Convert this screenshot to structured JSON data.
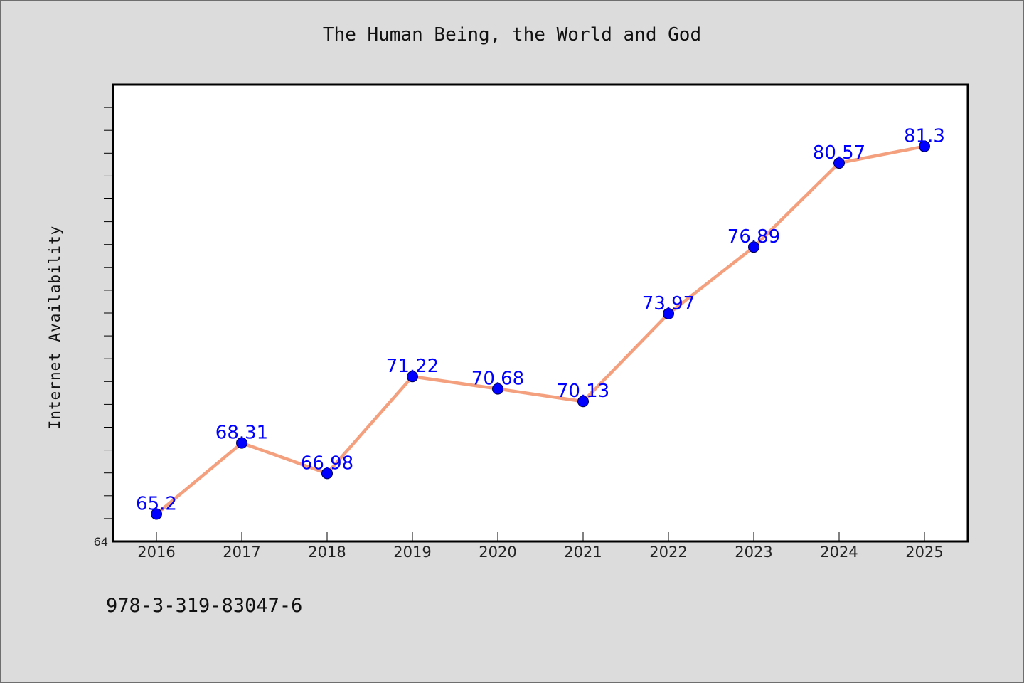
{
  "title": "The Human Being, the World and God",
  "footer_text": "978-3-319-83047-6",
  "chart_data": {
    "type": "line",
    "title": "The Human Being, the World and God",
    "xlabel": "",
    "ylabel": "Internet Availability",
    "categories": [
      "2016",
      "2017",
      "2018",
      "2019",
      "2020",
      "2021",
      "2022",
      "2023",
      "2024",
      "2025"
    ],
    "series": [
      {
        "values": [
          65.2,
          68.31,
          66.98,
          71.22,
          70.68,
          70.13,
          73.97,
          76.89,
          80.57,
          81.3
        ],
        "data_labels": [
          "65.2",
          "68.31",
          "66.98",
          "71.22",
          "70.68",
          "70.13",
          "73.97",
          "76.89",
          "80.57",
          "81.3"
        ],
        "line_color": "#f4a07f",
        "marker_color": "#0000ff"
      }
    ],
    "ylim": [
      64,
      84
    ],
    "y_tick_labels": [
      "64"
    ],
    "grid": false,
    "legend": "none",
    "plot_background": "#ffffff",
    "figure_background": "#dcdcdc"
  }
}
